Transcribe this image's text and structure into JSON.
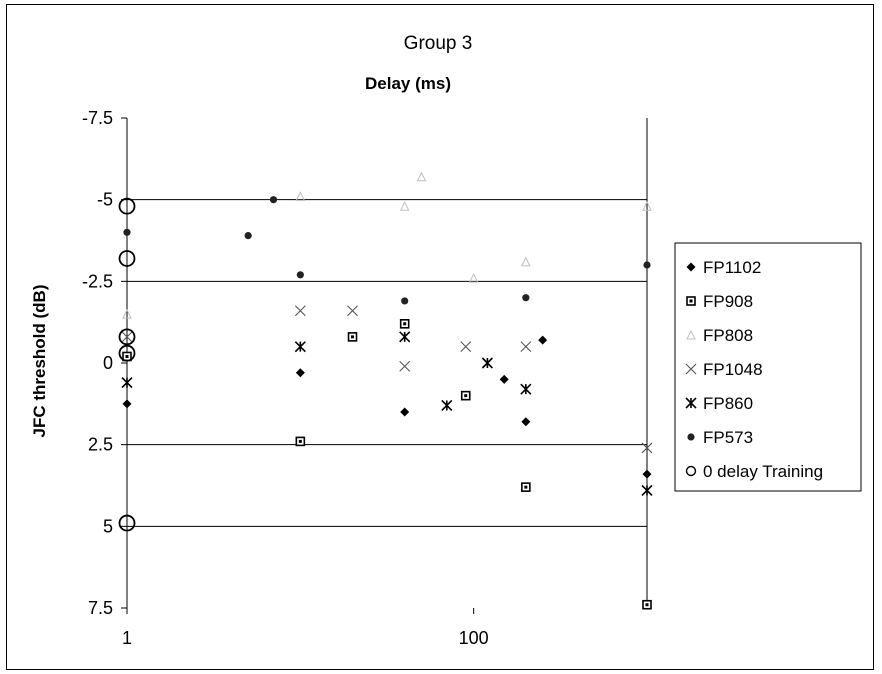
{
  "chart_data": {
    "type": "scatter",
    "title": "Group 3",
    "xlabel": "Delay (ms)",
    "ylabel": "JFC threshold (dB)",
    "x_scale": "log",
    "xlim": [
      1,
      1000
    ],
    "x_ticks": [
      1,
      100
    ],
    "x_tick_labels": [
      "1",
      "100"
    ],
    "y_inverted": true,
    "ylim": [
      -7.5,
      7.5
    ],
    "y_ticks": [
      -7.5,
      -5,
      -2.5,
      0,
      2.5,
      5,
      7.5
    ],
    "y_tick_labels": [
      "-7.5",
      "-5",
      "-2.5",
      "0",
      "2.5",
      "5",
      "7.5"
    ],
    "grid": "horizontal lines at -5, -2.5, 2.5, 5",
    "legend_position": "right",
    "series": [
      {
        "name": "FP1102",
        "marker": "diamond",
        "points": [
          [
            1,
            1.25
          ],
          [
            10,
            0.3
          ],
          [
            40,
            1.5
          ],
          [
            150,
            0.5
          ],
          [
            200,
            1.8
          ],
          [
            250,
            -0.7
          ],
          [
            1000,
            3.4
          ]
        ]
      },
      {
        "name": "FP908",
        "marker": "square",
        "points": [
          [
            1,
            -0.2
          ],
          [
            10,
            2.4
          ],
          [
            20,
            -0.8
          ],
          [
            40,
            -1.2
          ],
          [
            90,
            1.0
          ],
          [
            200,
            3.8
          ],
          [
            1000,
            7.4
          ]
        ]
      },
      {
        "name": "FP808",
        "marker": "triangle",
        "points": [
          [
            1,
            -1.5
          ],
          [
            10,
            -5.1
          ],
          [
            40,
            -4.8
          ],
          [
            50,
            -5.7
          ],
          [
            100,
            -2.6
          ],
          [
            200,
            -3.1
          ],
          [
            1000,
            -4.8
          ]
        ]
      },
      {
        "name": "FP1048",
        "marker": "x",
        "points": [
          [
            1,
            -0.8
          ],
          [
            10,
            -1.6
          ],
          [
            20,
            -1.6
          ],
          [
            40,
            0.1
          ],
          [
            90,
            -0.5
          ],
          [
            200,
            -0.5
          ],
          [
            1000,
            2.6
          ]
        ]
      },
      {
        "name": "FP860",
        "marker": "star",
        "points": [
          [
            1,
            0.6
          ],
          [
            10,
            -0.5
          ],
          [
            40,
            -0.8
          ],
          [
            70,
            1.3
          ],
          [
            120,
            0.0
          ],
          [
            200,
            0.8
          ],
          [
            1000,
            3.9
          ]
        ]
      },
      {
        "name": "FP573",
        "marker": "circle",
        "points": [
          [
            1,
            -4.0
          ],
          [
            5,
            -3.9
          ],
          [
            7,
            -5.0
          ],
          [
            10,
            -2.7
          ],
          [
            40,
            -1.9
          ],
          [
            200,
            -2.0
          ],
          [
            1000,
            -3.0
          ]
        ]
      },
      {
        "name": "0 delay Training",
        "marker": "open-circle",
        "points": [
          [
            1,
            -4.8
          ],
          [
            1,
            -3.2
          ],
          [
            1,
            -0.8
          ],
          [
            1,
            -0.3
          ],
          [
            1,
            4.9
          ]
        ]
      }
    ]
  }
}
